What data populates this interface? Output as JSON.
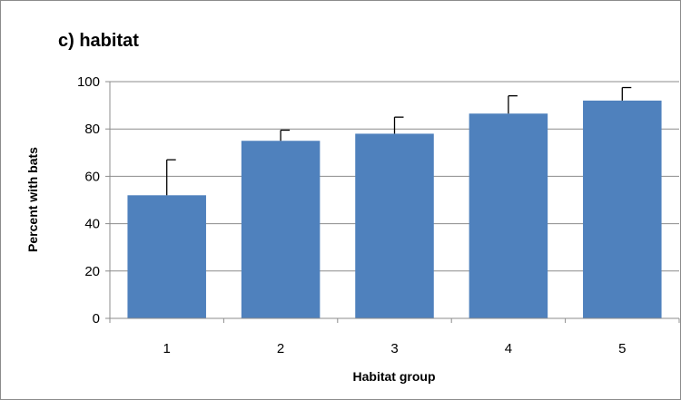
{
  "chart_data": {
    "type": "bar",
    "title": "c) habitat",
    "xlabel": "Habitat group",
    "ylabel": "Percent with bats",
    "categories": [
      "1",
      "2",
      "3",
      "4",
      "5"
    ],
    "values": [
      52,
      75,
      78,
      86.5,
      92
    ],
    "error_upper": [
      15,
      4.5,
      7,
      7.5,
      5.5
    ],
    "ylim": [
      0,
      100
    ],
    "yticks": [
      "0",
      "20",
      "40",
      "60",
      "80",
      "100"
    ],
    "grid": true,
    "legend": "none",
    "bar_color": "#4f81bd",
    "grid_color": "#8c8c8c"
  }
}
